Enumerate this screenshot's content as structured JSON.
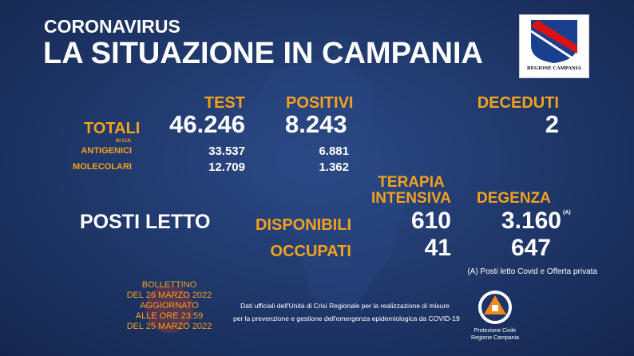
{
  "header": {
    "kicker": "CORONAVIRUS",
    "title": "LA SITUAZIONE IN CAMPANIA",
    "logo": "REGIONE CAMPANIA"
  },
  "totals": {
    "label": "TOTALI",
    "test": "TEST",
    "positive": "POSITIVI",
    "deaths": "DECEDUTI",
    "values": [
      "46.246",
      "8.243",
      "2"
    ],
    "of_which": "DI CUI:",
    "rows": [
      {
        "label": "ANTIGENICI",
        "values": [
          "33.537",
          "6.881"
        ]
      },
      {
        "label": "MOLECOLARI",
        "values": [
          "12.709",
          "1.362"
        ]
      }
    ]
  },
  "beds": {
    "title": "POSTI LETTO",
    "intensive_care": [
      "TERAPIA",
      "INTENSIVA"
    ],
    "ward": "DEGENZA",
    "note_mark": "(A)",
    "rows": [
      {
        "label": "DISPONIBILI",
        "values": [
          "610",
          "3.160"
        ]
      },
      {
        "label": "OCCUPATI",
        "values": [
          "41",
          "647"
        ]
      }
    ],
    "note": "(A) Posti letto Covid e Offerta privata"
  },
  "footer": {
    "bulletin": [
      "BOLLETTINO",
      "DEL 26 MARZO 2022",
      "AGGIORNATO",
      "ALLE ORE 23:59",
      "DEL 25 MARZO 2022"
    ],
    "source": [
      "Dati ufficiali dell'Unità di Crisi Regionale per la realizzazione di misure",
      "per la prevenzione e gestione dell'emergenza epidemiologica da COVID-19"
    ],
    "agency": [
      "Protezione Civile",
      "Regione Campania"
    ]
  }
}
